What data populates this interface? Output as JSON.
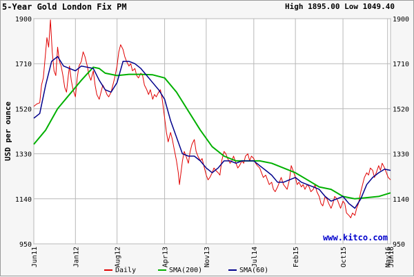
{
  "header": {
    "title": "5-Year Gold London Fix PM",
    "high_low": "High 1895.00 Low 1049.40"
  },
  "watermark": "www.kitco.com",
  "colors": {
    "daily": "#e00000",
    "sma200": "#00b000",
    "sma60": "#00008b",
    "grid": "#b8b8b8",
    "background": "#ffffff"
  },
  "chart_data": {
    "type": "line",
    "title": "5-Year Gold London Fix PM",
    "ylabel": "USD per ounce",
    "xlabel": "",
    "ylim": [
      950,
      1900
    ],
    "xlim": [
      0,
      60
    ],
    "yticks": [
      1900,
      1710,
      1520,
      1330,
      1140,
      950
    ],
    "xticks": [
      {
        "label": "Jun11",
        "x": 0
      },
      {
        "label": "Jan12",
        "x": 7
      },
      {
        "label": "Aug12",
        "x": 14
      },
      {
        "label": "Apr13",
        "x": 22
      },
      {
        "label": "Nov13",
        "x": 29
      },
      {
        "label": "Jul14",
        "x": 37
      },
      {
        "label": "Feb15",
        "x": 44
      },
      {
        "label": "Oct15",
        "x": 52
      },
      {
        "label": "May16",
        "x": 59.5
      },
      {
        "label": "Jun16",
        "x": 60
      }
    ],
    "grid": true,
    "legend": "bottom",
    "legend_items": [
      "Daily",
      "SMA(200)",
      "SMA(60)"
    ],
    "series": [
      {
        "name": "Daily",
        "color": "#e00000",
        "points": [
          [
            0,
            1530
          ],
          [
            0.5,
            1540
          ],
          [
            1,
            1545
          ],
          [
            1.3,
            1620
          ],
          [
            1.6,
            1650
          ],
          [
            2,
            1760
          ],
          [
            2.2,
            1820
          ],
          [
            2.5,
            1780
          ],
          [
            2.8,
            1895
          ],
          [
            3.1,
            1760
          ],
          [
            3.4,
            1680
          ],
          [
            3.7,
            1660
          ],
          [
            4,
            1780
          ],
          [
            4.3,
            1720
          ],
          [
            4.6,
            1700
          ],
          [
            4.9,
            1660
          ],
          [
            5.2,
            1610
          ],
          [
            5.5,
            1590
          ],
          [
            5.8,
            1660
          ],
          [
            6,
            1700
          ],
          [
            6.3,
            1640
          ],
          [
            6.6,
            1600
          ],
          [
            7,
            1570
          ],
          [
            7.3,
            1650
          ],
          [
            7.6,
            1700
          ],
          [
            8,
            1720
          ],
          [
            8.3,
            1760
          ],
          [
            8.6,
            1740
          ],
          [
            9,
            1700
          ],
          [
            9.3,
            1660
          ],
          [
            9.6,
            1640
          ],
          [
            10,
            1680
          ],
          [
            10.3,
            1620
          ],
          [
            10.6,
            1580
          ],
          [
            11,
            1560
          ],
          [
            11.3,
            1590
          ],
          [
            11.6,
            1620
          ],
          [
            12,
            1600
          ],
          [
            12.3,
            1580
          ],
          [
            12.6,
            1570
          ],
          [
            13,
            1590
          ],
          [
            13.3,
            1620
          ],
          [
            13.6,
            1650
          ],
          [
            14,
            1700
          ],
          [
            14.3,
            1760
          ],
          [
            14.6,
            1790
          ],
          [
            15,
            1770
          ],
          [
            15.3,
            1740
          ],
          [
            15.6,
            1720
          ],
          [
            16,
            1700
          ],
          [
            16.3,
            1710
          ],
          [
            16.6,
            1680
          ],
          [
            17,
            1690
          ],
          [
            17.3,
            1660
          ],
          [
            17.6,
            1650
          ],
          [
            18,
            1670
          ],
          [
            18.3,
            1660
          ],
          [
            18.6,
            1620
          ],
          [
            19,
            1600
          ],
          [
            19.3,
            1580
          ],
          [
            19.6,
            1600
          ],
          [
            20,
            1560
          ],
          [
            20.3,
            1580
          ],
          [
            20.6,
            1570
          ],
          [
            21,
            1590
          ],
          [
            21.3,
            1600
          ],
          [
            21.6,
            1560
          ],
          [
            22,
            1480
          ],
          [
            22.3,
            1420
          ],
          [
            22.6,
            1380
          ],
          [
            23,
            1420
          ],
          [
            23.3,
            1390
          ],
          [
            23.6,
            1350
          ],
          [
            24,
            1300
          ],
          [
            24.3,
            1250
          ],
          [
            24.5,
            1200
          ],
          [
            24.8,
            1260
          ],
          [
            25,
            1300
          ],
          [
            25.3,
            1340
          ],
          [
            25.6,
            1320
          ],
          [
            26,
            1290
          ],
          [
            26.3,
            1340
          ],
          [
            26.6,
            1370
          ],
          [
            27,
            1390
          ],
          [
            27.3,
            1340
          ],
          [
            27.6,
            1320
          ],
          [
            28,
            1300
          ],
          [
            28.3,
            1310
          ],
          [
            28.6,
            1280
          ],
          [
            29,
            1240
          ],
          [
            29.3,
            1220
          ],
          [
            29.6,
            1230
          ],
          [
            30,
            1250
          ],
          [
            30.3,
            1270
          ],
          [
            30.6,
            1260
          ],
          [
            31,
            1250
          ],
          [
            31.3,
            1240
          ],
          [
            31.6,
            1300
          ],
          [
            32,
            1340
          ],
          [
            32.3,
            1330
          ],
          [
            32.6,
            1310
          ],
          [
            33,
            1290
          ],
          [
            33.3,
            1300
          ],
          [
            33.6,
            1320
          ],
          [
            34,
            1290
          ],
          [
            34.3,
            1270
          ],
          [
            34.6,
            1280
          ],
          [
            35,
            1300
          ],
          [
            35.3,
            1290
          ],
          [
            35.6,
            1320
          ],
          [
            36,
            1330
          ],
          [
            36.3,
            1300
          ],
          [
            36.6,
            1320
          ],
          [
            37,
            1310
          ],
          [
            37.3,
            1290
          ],
          [
            37.6,
            1280
          ],
          [
            38,
            1270
          ],
          [
            38.3,
            1250
          ],
          [
            38.6,
            1230
          ],
          [
            39,
            1240
          ],
          [
            39.3,
            1220
          ],
          [
            39.6,
            1200
          ],
          [
            40,
            1210
          ],
          [
            40.3,
            1180
          ],
          [
            40.6,
            1170
          ],
          [
            41,
            1190
          ],
          [
            41.3,
            1210
          ],
          [
            41.6,
            1230
          ],
          [
            42,
            1200
          ],
          [
            42.3,
            1190
          ],
          [
            42.6,
            1180
          ],
          [
            43,
            1220
          ],
          [
            43.3,
            1280
          ],
          [
            43.6,
            1260
          ],
          [
            44,
            1230
          ],
          [
            44.3,
            1200
          ],
          [
            44.6,
            1210
          ],
          [
            45,
            1190
          ],
          [
            45.3,
            1200
          ],
          [
            45.6,
            1180
          ],
          [
            46,
            1200
          ],
          [
            46.3,
            1190
          ],
          [
            46.6,
            1170
          ],
          [
            47,
            1180
          ],
          [
            47.3,
            1200
          ],
          [
            47.6,
            1170
          ],
          [
            48,
            1150
          ],
          [
            48.3,
            1120
          ],
          [
            48.6,
            1110
          ],
          [
            49,
            1150
          ],
          [
            49.3,
            1140
          ],
          [
            49.6,
            1120
          ],
          [
            50,
            1100
          ],
          [
            50.3,
            1120
          ],
          [
            50.6,
            1150
          ],
          [
            51,
            1140
          ],
          [
            51.3,
            1120
          ],
          [
            51.6,
            1100
          ],
          [
            52,
            1130
          ],
          [
            52.3,
            1120
          ],
          [
            52.6,
            1080
          ],
          [
            53,
            1070
          ],
          [
            53.3,
            1060
          ],
          [
            53.6,
            1080
          ],
          [
            54,
            1070
          ],
          [
            54.3,
            1100
          ],
          [
            54.6,
            1120
          ],
          [
            55,
            1170
          ],
          [
            55.3,
            1200
          ],
          [
            55.6,
            1230
          ],
          [
            56,
            1250
          ],
          [
            56.3,
            1240
          ],
          [
            56.6,
            1270
          ],
          [
            57,
            1260
          ],
          [
            57.3,
            1230
          ],
          [
            57.6,
            1250
          ],
          [
            58,
            1280
          ],
          [
            58.3,
            1260
          ],
          [
            58.6,
            1290
          ],
          [
            59,
            1270
          ],
          [
            59.3,
            1250
          ],
          [
            59.6,
            1230
          ],
          [
            60,
            1220
          ]
        ]
      },
      {
        "name": "SMA(200)",
        "color": "#00b000",
        "points": [
          [
            0,
            1370
          ],
          [
            2,
            1430
          ],
          [
            4,
            1520
          ],
          [
            6,
            1580
          ],
          [
            8,
            1640
          ],
          [
            10,
            1695
          ],
          [
            11,
            1690
          ],
          [
            12,
            1670
          ],
          [
            14,
            1660
          ],
          [
            16,
            1665
          ],
          [
            18,
            1665
          ],
          [
            20,
            1663
          ],
          [
            22,
            1650
          ],
          [
            24,
            1590
          ],
          [
            26,
            1510
          ],
          [
            28,
            1430
          ],
          [
            30,
            1360
          ],
          [
            32,
            1320
          ],
          [
            34,
            1300
          ],
          [
            36,
            1300
          ],
          [
            38,
            1300
          ],
          [
            40,
            1290
          ],
          [
            42,
            1270
          ],
          [
            44,
            1250
          ],
          [
            46,
            1220
          ],
          [
            48,
            1190
          ],
          [
            50,
            1180
          ],
          [
            52,
            1150
          ],
          [
            54,
            1140
          ],
          [
            56,
            1145
          ],
          [
            58,
            1150
          ],
          [
            60,
            1165
          ]
        ]
      },
      {
        "name": "SMA(60)",
        "color": "#00008b",
        "points": [
          [
            0,
            1480
          ],
          [
            1,
            1500
          ],
          [
            2,
            1620
          ],
          [
            3,
            1720
          ],
          [
            4,
            1740
          ],
          [
            5,
            1700
          ],
          [
            6,
            1690
          ],
          [
            7,
            1680
          ],
          [
            8,
            1700
          ],
          [
            9,
            1695
          ],
          [
            10,
            1690
          ],
          [
            11,
            1640
          ],
          [
            12,
            1600
          ],
          [
            13,
            1590
          ],
          [
            14,
            1630
          ],
          [
            15,
            1720
          ],
          [
            16,
            1720
          ],
          [
            17,
            1710
          ],
          [
            18,
            1690
          ],
          [
            19,
            1660
          ],
          [
            20,
            1630
          ],
          [
            21,
            1600
          ],
          [
            22,
            1560
          ],
          [
            23,
            1470
          ],
          [
            24,
            1400
          ],
          [
            25,
            1330
          ],
          [
            26,
            1320
          ],
          [
            27,
            1320
          ],
          [
            28,
            1300
          ],
          [
            29,
            1270
          ],
          [
            30,
            1250
          ],
          [
            31,
            1270
          ],
          [
            32,
            1300
          ],
          [
            33,
            1300
          ],
          [
            34,
            1290
          ],
          [
            35,
            1300
          ],
          [
            36,
            1300
          ],
          [
            37,
            1300
          ],
          [
            38,
            1280
          ],
          [
            39,
            1260
          ],
          [
            40,
            1240
          ],
          [
            41,
            1210
          ],
          [
            42,
            1210
          ],
          [
            43,
            1220
          ],
          [
            44,
            1230
          ],
          [
            45,
            1210
          ],
          [
            46,
            1200
          ],
          [
            47,
            1190
          ],
          [
            48,
            1180
          ],
          [
            49,
            1150
          ],
          [
            50,
            1130
          ],
          [
            51,
            1140
          ],
          [
            52,
            1150
          ],
          [
            53,
            1120
          ],
          [
            54,
            1100
          ],
          [
            55,
            1140
          ],
          [
            56,
            1200
          ],
          [
            57,
            1230
          ],
          [
            58,
            1250
          ],
          [
            59,
            1265
          ],
          [
            60,
            1260
          ]
        ]
      }
    ]
  }
}
